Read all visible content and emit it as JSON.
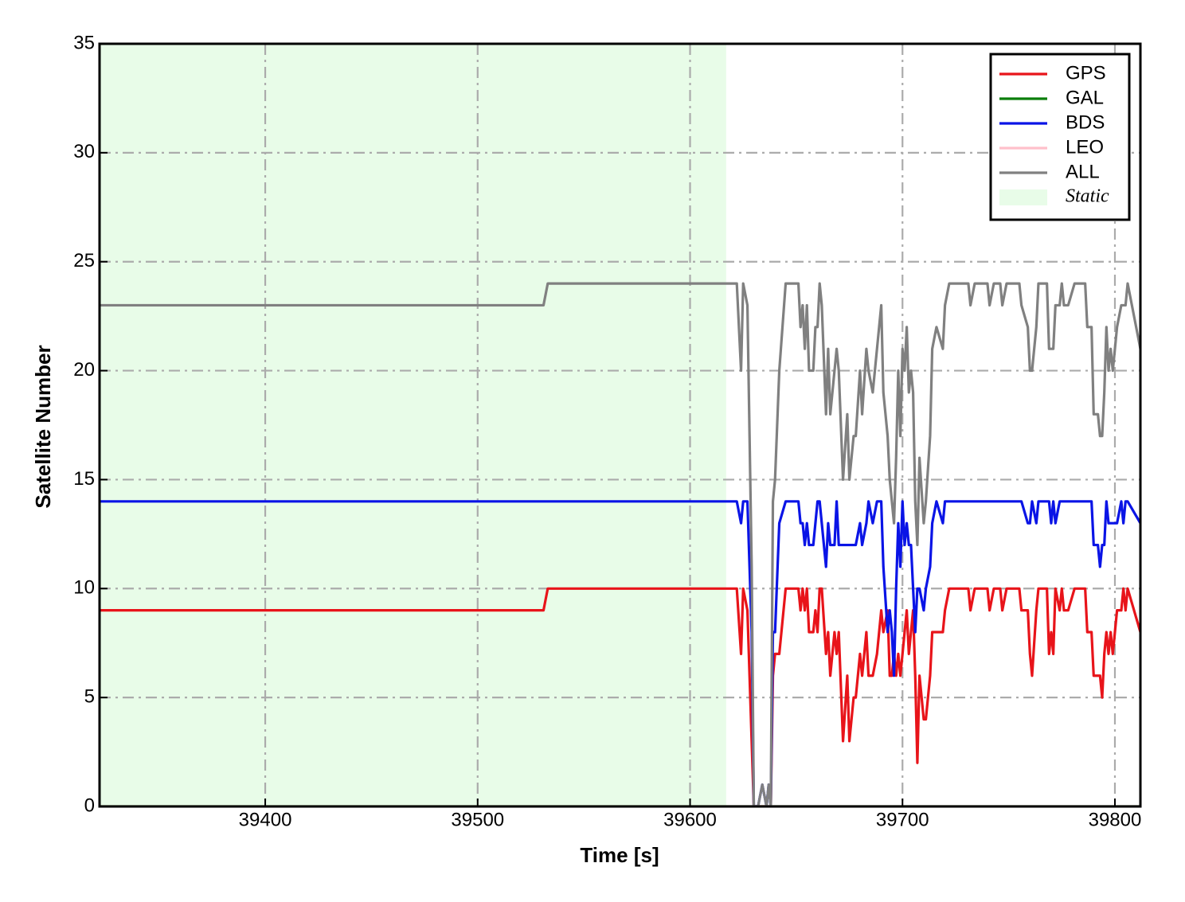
{
  "chart_data": {
    "type": "line",
    "xlabel": "Time [s]",
    "ylabel": "Satellite Number",
    "xlim": [
      39322,
      39812
    ],
    "ylim": [
      0,
      35
    ],
    "xticks": [
      39400,
      39500,
      39600,
      39700,
      39800
    ],
    "yticks": [
      0,
      5,
      10,
      15,
      20,
      25,
      30,
      35
    ],
    "grid": true,
    "legend": "upper right",
    "spans": [
      {
        "name": "Static",
        "start": 39322,
        "end": 39617,
        "color": "#e8fce8"
      }
    ],
    "x": [
      39322,
      39531,
      39533,
      39622,
      39624,
      39625,
      39627,
      39629,
      39630,
      39632,
      39634,
      39636,
      39637,
      39638,
      39639,
      39640,
      39642,
      39645,
      39651,
      39652,
      39653,
      39654,
      39655,
      39656,
      39658,
      39659,
      39660,
      39661,
      39662,
      39664,
      39665,
      39666,
      39668,
      39669,
      39670,
      39672,
      39674,
      39675,
      39677,
      39678,
      39680,
      39681,
      39683,
      39684,
      39686,
      39688,
      39690,
      39691,
      39693,
      39694,
      39695,
      39696,
      39697,
      39698,
      39699,
      39700,
      39701,
      39702,
      39703,
      39704,
      39705,
      39706,
      39707,
      39708,
      39710,
      39711,
      39713,
      39714,
      39716,
      39719,
      39720,
      39722,
      39731,
      39732,
      39734,
      39740,
      39741,
      39743,
      39746,
      39747,
      39749,
      39755,
      39756,
      39759,
      39760,
      39761,
      39763,
      39764,
      39768,
      39769,
      39770,
      39771,
      39772,
      39774,
      39775,
      39776,
      39778,
      39781,
      39786,
      39787,
      39789,
      39790,
      39792,
      39793,
      39794,
      39795,
      39796,
      39797,
      39798,
      39799,
      39801,
      39803,
      39804,
      39805,
      39806,
      39812
    ],
    "series": [
      {
        "name": "GPS",
        "color": "#e8141a",
        "values": [
          9,
          9,
          10,
          10,
          7,
          10,
          9,
          3,
          0,
          0,
          0,
          0,
          0,
          0,
          6,
          7,
          7,
          10,
          10,
          9,
          10,
          9,
          10,
          8,
          8,
          9,
          8,
          10,
          10,
          7,
          8,
          6,
          8,
          7,
          8,
          3,
          6,
          3,
          5,
          5,
          7,
          6,
          8,
          6,
          6,
          7,
          9,
          8,
          9,
          6,
          6,
          7,
          6,
          7,
          6,
          7,
          8,
          9,
          7,
          8,
          9,
          6,
          2,
          6,
          4,
          4,
          6,
          8,
          8,
          8,
          9,
          10,
          10,
          9,
          10,
          10,
          9,
          10,
          10,
          9,
          10,
          10,
          9,
          9,
          7,
          6,
          9,
          10,
          10,
          7,
          8,
          7,
          10,
          9,
          10,
          9,
          9,
          10,
          10,
          8,
          8,
          6,
          6,
          6,
          5,
          7,
          8,
          7,
          8,
          7,
          9,
          9,
          10,
          9,
          10,
          8
        ]
      },
      {
        "name": "GAL",
        "color": "#0a7d0a",
        "values": [
          0,
          0,
          0,
          0,
          0,
          0,
          0,
          0,
          0,
          0,
          0,
          0,
          0,
          0,
          0,
          0,
          0,
          0,
          0,
          0,
          0,
          0,
          0,
          0,
          0,
          0,
          0,
          0,
          0,
          0,
          0,
          0,
          0,
          0,
          0,
          0,
          0,
          0,
          0,
          0,
          0,
          0,
          0,
          0,
          0,
          0,
          0,
          0,
          0,
          0,
          0,
          0,
          0,
          0,
          0,
          0,
          0,
          0,
          0,
          0,
          0,
          0,
          0,
          0,
          0,
          0,
          0,
          0,
          0,
          0,
          0,
          0,
          0,
          0,
          0,
          0,
          0,
          0,
          0,
          0,
          0,
          0,
          0,
          0,
          0,
          0,
          0,
          0,
          0,
          0,
          0,
          0,
          0,
          0,
          0,
          0,
          0,
          0,
          0,
          0,
          0,
          0,
          0,
          0,
          0,
          0,
          0,
          0,
          0,
          0,
          0,
          0,
          0,
          0,
          0,
          0
        ]
      },
      {
        "name": "BDS",
        "color": "#0a14e6",
        "values": [
          14,
          14,
          14,
          14,
          13,
          14,
          14,
          8,
          0,
          0,
          1,
          0,
          1,
          0,
          8,
          8,
          13,
          14,
          14,
          13,
          13,
          12,
          13,
          12,
          12,
          13,
          14,
          14,
          13,
          11,
          13,
          12,
          12,
          14,
          12,
          12,
          12,
          12,
          12,
          12,
          13,
          12,
          13,
          14,
          13,
          14,
          14,
          11,
          8,
          9,
          8,
          6,
          10,
          13,
          11,
          14,
          12,
          13,
          12,
          12,
          10,
          8,
          10,
          10,
          9,
          10,
          11,
          13,
          14,
          13,
          14,
          14,
          14,
          14,
          14,
          14,
          14,
          14,
          14,
          14,
          14,
          14,
          14,
          13,
          13,
          14,
          13,
          14,
          14,
          14,
          13,
          14,
          13,
          14,
          14,
          14,
          14,
          14,
          14,
          14,
          14,
          12,
          12,
          11,
          12,
          12,
          14,
          13,
          13,
          13,
          13,
          14,
          13,
          14,
          14,
          13
        ]
      },
      {
        "name": "LEO",
        "color": "#ffc0cb",
        "values": [
          0,
          0,
          0,
          0,
          0,
          0,
          0,
          0,
          0,
          0,
          0,
          0,
          0,
          0,
          0,
          0,
          0,
          0,
          0,
          0,
          0,
          0,
          0,
          0,
          0,
          0,
          0,
          0,
          0,
          0,
          0,
          0,
          0,
          0,
          0,
          0,
          0,
          0,
          0,
          0,
          0,
          0,
          0,
          0,
          0,
          0,
          0,
          0,
          0,
          0,
          0,
          0,
          0,
          0,
          0,
          0,
          0,
          0,
          0,
          0,
          0,
          0,
          0,
          0,
          0,
          0,
          0,
          0,
          0,
          0,
          0,
          0,
          0,
          0,
          0,
          0,
          0,
          0,
          0,
          0,
          0,
          0,
          0,
          0,
          0,
          0,
          0,
          0,
          0,
          0,
          0,
          0,
          0,
          0,
          0,
          0,
          0,
          0,
          0,
          0,
          0,
          0,
          0,
          0,
          0,
          0,
          0,
          0,
          0,
          0,
          0,
          0,
          0,
          0,
          0,
          0
        ]
      },
      {
        "name": "ALL",
        "color": "#808080",
        "values": [
          23,
          23,
          24,
          24,
          20,
          24,
          23,
          11,
          0,
          0,
          1,
          0,
          1,
          0,
          14,
          15,
          20,
          24,
          24,
          22,
          23,
          21,
          23,
          20,
          20,
          22,
          22,
          24,
          23,
          18,
          21,
          18,
          20,
          21,
          20,
          15,
          18,
          15,
          17,
          17,
          20,
          18,
          21,
          20,
          19,
          21,
          23,
          19,
          17,
          15,
          14,
          13,
          16,
          20,
          17,
          21,
          20,
          22,
          19,
          20,
          19,
          14,
          12,
          16,
          13,
          14,
          17,
          21,
          22,
          21,
          23,
          24,
          24,
          23,
          24,
          24,
          23,
          24,
          24,
          23,
          24,
          24,
          23,
          22,
          20,
          20,
          22,
          24,
          24,
          21,
          21,
          21,
          23,
          23,
          24,
          23,
          23,
          24,
          24,
          22,
          22,
          18,
          18,
          17,
          17,
          19,
          22,
          20,
          21,
          20,
          22,
          23,
          23,
          23,
          24,
          21
        ]
      }
    ]
  }
}
